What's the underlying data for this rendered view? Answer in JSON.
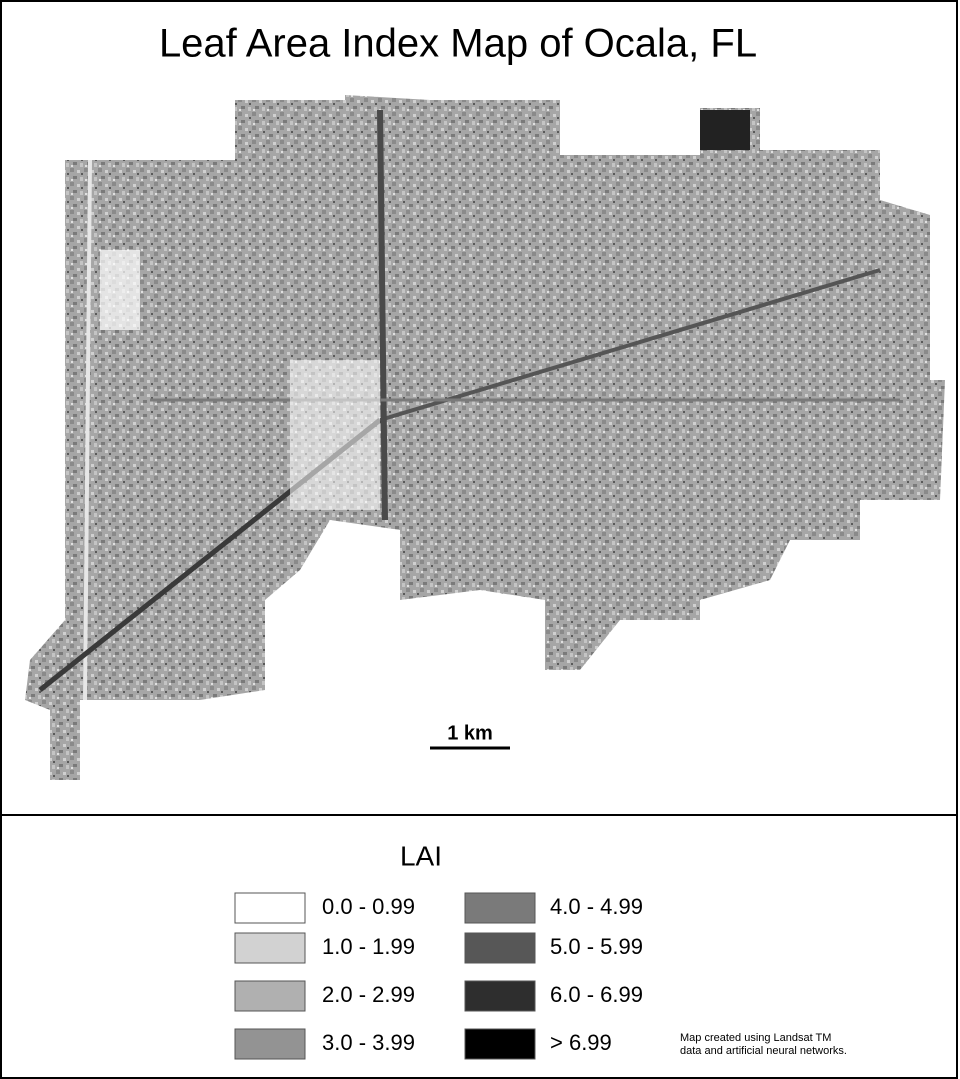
{
  "title": "Leaf Area Index Map of Ocala, FL",
  "scale_bar": "1 km",
  "legend": {
    "title": "LAI",
    "items": [
      {
        "label": "0.0 - 0.99",
        "color": "#ffffff"
      },
      {
        "label": "1.0 - 1.99",
        "color": "#d2d2d2"
      },
      {
        "label": "2.0 - 2.99",
        "color": "#b0b0b0"
      },
      {
        "label": "3.0 - 3.99",
        "color": "#939393"
      },
      {
        "label": "4.0 - 4.99",
        "color": "#7a7a7a"
      },
      {
        "label": "5.0 - 5.99",
        "color": "#575757"
      },
      {
        "label": "6.0 - 6.99",
        "color": "#2e2e2e"
      },
      {
        "label": "> 6.99",
        "color": "#000000"
      }
    ]
  },
  "note": [
    "Map created using Landsat TM",
    "data and artificial neural networks."
  ]
}
